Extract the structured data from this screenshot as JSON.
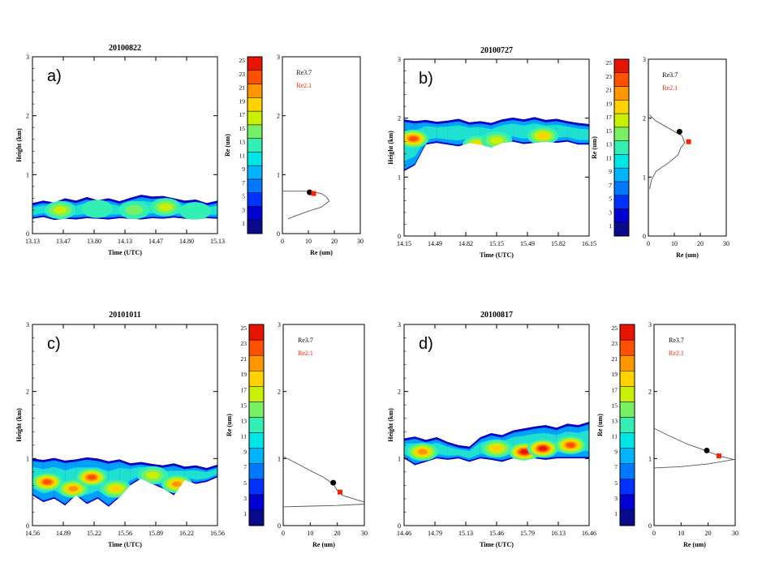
{
  "figure": {
    "panels": [
      {
        "label": "a)",
        "date": "20100822",
        "time_ticks": [
          "13.13",
          "13.47",
          "13.80",
          "14.13",
          "14.47",
          "14.80",
          "15.13"
        ],
        "height_ticks": [
          "0",
          "1",
          "2",
          "3"
        ],
        "xlabel": "Time (UTC)",
        "ylabel": "Height (km)",
        "cloud_band": {
          "top": [
            0.52,
            0.56,
            0.53,
            0.6,
            0.56,
            0.62,
            0.57,
            0.6,
            0.55,
            0.61,
            0.66,
            0.63,
            0.64,
            0.6,
            0.56,
            0.58,
            0.52,
            0.56
          ],
          "bottom": [
            0.25,
            0.28,
            0.23,
            0.25,
            0.24,
            0.26,
            0.25,
            0.24,
            0.26,
            0.25,
            0.24,
            0.26,
            0.25,
            0.27,
            0.25,
            0.24,
            0.26,
            0.25
          ],
          "hotspots": [
            {
              "t": 0.15,
              "h": 0.4,
              "v": 17
            },
            {
              "t": 0.35,
              "h": 0.42,
              "v": 13
            },
            {
              "t": 0.55,
              "h": 0.4,
              "v": 15
            },
            {
              "t": 0.72,
              "h": 0.45,
              "v": 17
            },
            {
              "t": 0.88,
              "h": 0.38,
              "v": 13
            }
          ]
        },
        "profile": {
          "line": [
            [
              2.2,
              0.25
            ],
            [
              5,
              0.3
            ],
            [
              10,
              0.38
            ],
            [
              15,
              0.45
            ],
            [
              18,
              0.55
            ],
            [
              17,
              0.62
            ],
            [
              15,
              0.68
            ],
            [
              11,
              0.71
            ],
            [
              9,
              0.72
            ],
            [
              0,
              0.72
            ]
          ],
          "re37_point": {
            "re": 10.5,
            "h": 0.7
          },
          "re21_point": {
            "re": 12.0,
            "h": 0.68
          }
        }
      },
      {
        "label": "b)",
        "date": "20100727",
        "time_ticks": [
          "14.15",
          "14.49",
          "14.82",
          "15.15",
          "15.49",
          "15.82",
          "16.15"
        ],
        "height_ticks": [
          "0",
          "1",
          "2",
          "3"
        ],
        "xlabel": "Time (UTC)",
        "ylabel": "Height (km)",
        "cloud_band": {
          "top": [
            1.98,
            1.95,
            1.97,
            1.94,
            1.96,
            1.99,
            1.93,
            1.95,
            1.92,
            1.98,
            2.01,
            1.98,
            2.02,
            1.97,
            1.99,
            1.95,
            1.92,
            1.9
          ],
          "bottom": [
            1.1,
            1.2,
            1.55,
            1.58,
            1.55,
            1.52,
            1.58,
            1.55,
            1.5,
            1.58,
            1.6,
            1.56,
            1.58,
            1.6,
            1.58,
            1.6,
            1.55,
            1.55
          ],
          "hotspots": [
            {
              "t": 0.05,
              "h": 1.65,
              "v": 23
            },
            {
              "t": 0.4,
              "h": 1.55,
              "v": 19
            },
            {
              "t": 0.5,
              "h": 1.62,
              "v": 17
            },
            {
              "t": 0.75,
              "h": 1.7,
              "v": 19
            }
          ]
        },
        "profile": {
          "line": [
            [
              0.5,
              0.8
            ],
            [
              1.2,
              0.95
            ],
            [
              3,
              1.1
            ],
            [
              8,
              1.25
            ],
            [
              11.5,
              1.38
            ],
            [
              12.5,
              1.5
            ],
            [
              14,
              1.58
            ],
            [
              13,
              1.7
            ],
            [
              9,
              1.8
            ],
            [
              3,
              1.95
            ],
            [
              0.5,
              2.05
            ]
          ],
          "re37_point": {
            "re": 12.0,
            "h": 1.77
          },
          "re21_point": {
            "re": 15.5,
            "h": 1.6
          }
        }
      },
      {
        "label": "c)",
        "date": "20101011",
        "time_ticks": [
          "14.56",
          "14.89",
          "15.22",
          "15.56",
          "15.89",
          "16.22",
          "16.56"
        ],
        "height_ticks": [
          "0",
          "1",
          "2",
          "3"
        ],
        "xlabel": "Time (UTC)",
        "ylabel": "Height (km)",
        "cloud_band": {
          "top": [
            1.0,
            0.98,
            1.01,
            0.97,
            0.99,
            1.02,
            1.0,
            0.96,
            0.99,
            0.93,
            0.95,
            0.92,
            0.9,
            0.93,
            0.88,
            0.9,
            0.86,
            0.91
          ],
          "bottom": [
            0.45,
            0.35,
            0.4,
            0.3,
            0.45,
            0.32,
            0.4,
            0.28,
            0.42,
            0.6,
            0.7,
            0.62,
            0.55,
            0.45,
            0.68,
            0.62,
            0.65,
            0.72
          ],
          "hotspots": [
            {
              "t": 0.08,
              "h": 0.65,
              "v": 23
            },
            {
              "t": 0.22,
              "h": 0.55,
              "v": 21
            },
            {
              "t": 0.32,
              "h": 0.72,
              "v": 23
            },
            {
              "t": 0.45,
              "h": 0.55,
              "v": 19
            },
            {
              "t": 0.65,
              "h": 0.75,
              "v": 17
            },
            {
              "t": 0.78,
              "h": 0.62,
              "v": 21
            }
          ]
        },
        "profile": {
          "line": [
            [
              0,
              1.03
            ],
            [
              4,
              0.95
            ],
            [
              10,
              0.82
            ],
            [
              15,
              0.72
            ],
            [
              18.5,
              0.62
            ],
            [
              20,
              0.52
            ],
            [
              22,
              0.45
            ],
            [
              26,
              0.4
            ],
            [
              30,
              0.35
            ]
          ],
          "baseline": [
            [
              0,
              0.28
            ],
            [
              10,
              0.29
            ],
            [
              20,
              0.3
            ],
            [
              30,
              0.32
            ]
          ],
          "re37_point": {
            "re": 18.5,
            "h": 0.64
          },
          "re21_point": {
            "re": 21.0,
            "h": 0.5
          }
        }
      },
      {
        "label": "d)",
        "date": "20100817",
        "time_ticks": [
          "14.46",
          "14.79",
          "15.13",
          "15.46",
          "15.79",
          "16.13",
          "16.46"
        ],
        "height_ticks": [
          "0",
          "1",
          "2",
          "3"
        ],
        "xlabel": "Time (UTC)",
        "ylabel": "Height (km)",
        "cloud_band": {
          "top": [
            1.3,
            1.33,
            1.28,
            1.32,
            1.25,
            1.2,
            1.18,
            1.32,
            1.38,
            1.35,
            1.42,
            1.45,
            1.48,
            1.5,
            1.46,
            1.52,
            1.5,
            1.55
          ],
          "bottom": [
            1.0,
            0.9,
            0.95,
            1.0,
            0.98,
            1.0,
            0.95,
            1.0,
            0.98,
            0.95,
            1.0,
            0.97,
            1.0,
            0.98,
            1.0,
            1.0,
            1.0,
            1.0
          ],
          "hotspots": [
            {
              "t": 0.1,
              "h": 1.1,
              "v": 21
            },
            {
              "t": 0.5,
              "h": 1.15,
              "v": 19
            },
            {
              "t": 0.65,
              "h": 1.1,
              "v": 25
            },
            {
              "t": 0.75,
              "h": 1.15,
              "v": 25
            },
            {
              "t": 0.9,
              "h": 1.2,
              "v": 23
            }
          ]
        },
        "profile": {
          "line": [
            [
              0,
              1.45
            ],
            [
              5,
              1.35
            ],
            [
              12,
              1.22
            ],
            [
              19,
              1.12
            ],
            [
              24,
              1.04
            ],
            [
              28,
              1.0
            ],
            [
              30,
              0.98
            ]
          ],
          "baseline": [
            [
              0,
              0.86
            ],
            [
              10,
              0.88
            ],
            [
              20,
              0.92
            ],
            [
              26,
              0.96
            ],
            [
              30,
              0.99
            ]
          ],
          "re37_point": {
            "re": 19.5,
            "h": 1.12
          },
          "re21_point": {
            "re": 24.0,
            "h": 1.04
          }
        }
      }
    ],
    "colorbar": {
      "ticks": [
        "25",
        "23",
        "21",
        "19",
        "17",
        "15",
        "13",
        "11",
        "9",
        "7",
        "5",
        "3",
        "1"
      ],
      "label": "Re (um)",
      "colors": [
        "#0a0a8c",
        "#0000d2",
        "#0032ff",
        "#0078ff",
        "#00b4ff",
        "#00e6e6",
        "#32f0b4",
        "#78f064",
        "#c8f000",
        "#ffd200",
        "#ff9600",
        "#ff5000",
        "#e61400"
      ]
    },
    "profile_axes": {
      "xticks": [
        "0",
        "10",
        "20",
        "30"
      ],
      "yticks": [
        "0",
        "1",
        "2",
        "3"
      ],
      "xlabel": "Re (um)",
      "legend_re37": "Re3.7",
      "legend_re21": "Re2.1",
      "re37_color": "#000000",
      "re21_color": "#ff2000"
    }
  },
  "chart_data": [
    {
      "type": "heatmap",
      "title": "20100822",
      "xlabel": "Time (UTC)",
      "ylabel": "Height (km)",
      "xlim": [
        13.13,
        15.13
      ],
      "ylim": [
        0,
        3
      ],
      "colorbar_label": "Re (um)",
      "colorbar_range": [
        1,
        25
      ]
    },
    {
      "type": "line",
      "xlabel": "Re (um)",
      "xlim": [
        0,
        30
      ],
      "ylim": [
        0,
        3
      ],
      "series": [
        {
          "name": "Re3.7",
          "x": [
            10.5
          ],
          "y": [
            0.7
          ]
        },
        {
          "name": "Re2.1",
          "x": [
            12.0
          ],
          "y": [
            0.68
          ]
        }
      ]
    },
    {
      "type": "heatmap",
      "title": "20100727",
      "xlabel": "Time (UTC)",
      "ylabel": "Height (km)",
      "xlim": [
        14.15,
        16.15
      ],
      "ylim": [
        0,
        3
      ],
      "colorbar_label": "Re (um)",
      "colorbar_range": [
        1,
        25
      ]
    },
    {
      "type": "line",
      "xlabel": "Re (um)",
      "xlim": [
        0,
        30
      ],
      "ylim": [
        0,
        3
      ],
      "series": [
        {
          "name": "Re3.7",
          "x": [
            12.0
          ],
          "y": [
            1.77
          ]
        },
        {
          "name": "Re2.1",
          "x": [
            15.5
          ],
          "y": [
            1.6
          ]
        }
      ]
    },
    {
      "type": "heatmap",
      "title": "20101011",
      "xlabel": "Time (UTC)",
      "ylabel": "Height (km)",
      "xlim": [
        14.56,
        16.56
      ],
      "ylim": [
        0,
        3
      ],
      "colorbar_label": "Re (um)",
      "colorbar_range": [
        1,
        25
      ]
    },
    {
      "type": "line",
      "xlabel": "Re (um)",
      "xlim": [
        0,
        30
      ],
      "ylim": [
        0,
        3
      ],
      "series": [
        {
          "name": "Re3.7",
          "x": [
            18.5
          ],
          "y": [
            0.64
          ]
        },
        {
          "name": "Re2.1",
          "x": [
            21.0
          ],
          "y": [
            0.5
          ]
        }
      ]
    },
    {
      "type": "heatmap",
      "title": "20100817",
      "xlabel": "Time (UTC)",
      "ylabel": "Height (km)",
      "xlim": [
        14.46,
        16.46
      ],
      "ylim": [
        0,
        3
      ],
      "colorbar_label": "Re (um)",
      "colorbar_range": [
        1,
        25
      ]
    },
    {
      "type": "line",
      "xlabel": "Re (um)",
      "xlim": [
        0,
        30
      ],
      "ylim": [
        0,
        3
      ],
      "series": [
        {
          "name": "Re3.7",
          "x": [
            19.5
          ],
          "y": [
            1.12
          ]
        },
        {
          "name": "Re2.1",
          "x": [
            24.0
          ],
          "y": [
            1.04
          ]
        }
      ]
    }
  ]
}
